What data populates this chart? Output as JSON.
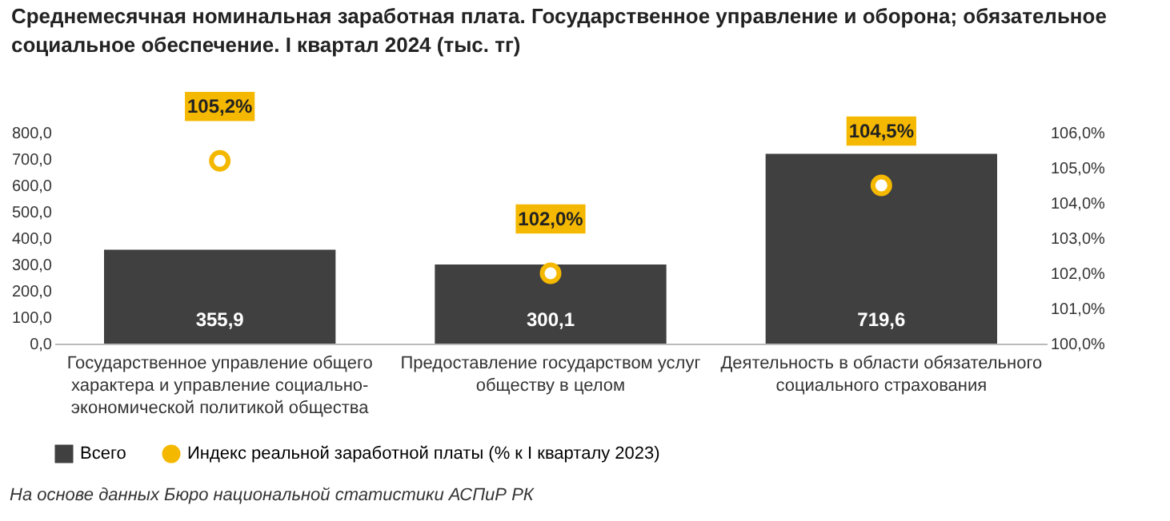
{
  "chart_data": {
    "type": "bar",
    "title": "Среднемесячная номинальная заработная плата. Государственное управление и оборона; обязательное социальное обеспечение. I квартал 2024 (тыс. тг)",
    "categories": [
      "Государственное управление общего характера и управление социально-экономической политикой общества",
      "Предоставление государством услуг обществу в целом",
      "Деятельность в области обязательного социального страхования"
    ],
    "series": [
      {
        "name": "Всего",
        "type": "bar",
        "color": "#404040",
        "values": [
          355.9,
          300.1,
          719.6
        ],
        "value_labels": [
          "355,9",
          "300,1",
          "719,6"
        ]
      },
      {
        "name": "Индекс реальной заработной платы (% к I кварталу 2023)",
        "type": "scatter",
        "axis": "y2",
        "marker": "circle",
        "color": "#f5b800",
        "values": [
          105.2,
          102.0,
          104.5
        ],
        "value_labels": [
          "105,2%",
          "102,0%",
          "104,5%"
        ]
      }
    ],
    "ylim": [
      0,
      800
    ],
    "yticks": [
      {
        "value": 0,
        "label": "0,0"
      },
      {
        "value": 100,
        "label": "100,0"
      },
      {
        "value": 200,
        "label": "200,0"
      },
      {
        "value": 300,
        "label": "300,0"
      },
      {
        "value": 400,
        "label": "400,0"
      },
      {
        "value": 500,
        "label": "500,0"
      },
      {
        "value": 600,
        "label": "600,0"
      },
      {
        "value": 700,
        "label": "700,0"
      },
      {
        "value": 800,
        "label": "800,0"
      }
    ],
    "y2lim": [
      100,
      106
    ],
    "y2ticks": [
      {
        "value": 100,
        "label": "100,0%"
      },
      {
        "value": 101,
        "label": "101,0%"
      },
      {
        "value": 102,
        "label": "102,0%"
      },
      {
        "value": 103,
        "label": "103,0%"
      },
      {
        "value": 104,
        "label": "104,0%"
      },
      {
        "value": 105,
        "label": "105,0%"
      },
      {
        "value": 106,
        "label": "106,0%"
      }
    ],
    "legend": "bottom",
    "annotations": [
      "На основе данных Бюро национальной статистики АСПиР РК"
    ]
  }
}
